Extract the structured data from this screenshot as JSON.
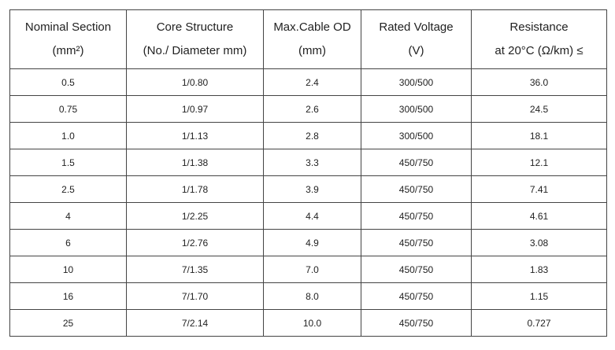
{
  "table": {
    "header": [
      [
        "Nominal Section",
        "(mm²)"
      ],
      [
        "Core Structure",
        "(No./ Diameter mm)"
      ],
      [
        "Max.Cable OD",
        "(mm)"
      ],
      [
        "Rated Voltage",
        "(V)"
      ],
      [
        "Resistance",
        "at 20°C (Ω/km) ≤"
      ]
    ],
    "rows": [
      [
        "0.5",
        "1/0.80",
        "2.4",
        "300/500",
        "36.0"
      ],
      [
        "0.75",
        "1/0.97",
        "2.6",
        "300/500",
        "24.5"
      ],
      [
        "1.0",
        "1/1.13",
        "2.8",
        "300/500",
        "18.1"
      ],
      [
        "1.5",
        "1/1.38",
        "3.3",
        "450/750",
        "12.1"
      ],
      [
        "2.5",
        "1/1.78",
        "3.9",
        "450/750",
        "7.41"
      ],
      [
        "4",
        "1/2.25",
        "4.4",
        "450/750",
        "4.61"
      ],
      [
        "6",
        "1/2.76",
        "4.9",
        "450/750",
        "3.08"
      ],
      [
        "10",
        "7/1.35",
        "7.0",
        "450/750",
        "1.83"
      ],
      [
        "16",
        "7/1.70",
        "8.0",
        "450/750",
        "1.15"
      ],
      [
        "25",
        "7/2.14",
        "10.0",
        "450/750",
        "0.727"
      ]
    ]
  }
}
